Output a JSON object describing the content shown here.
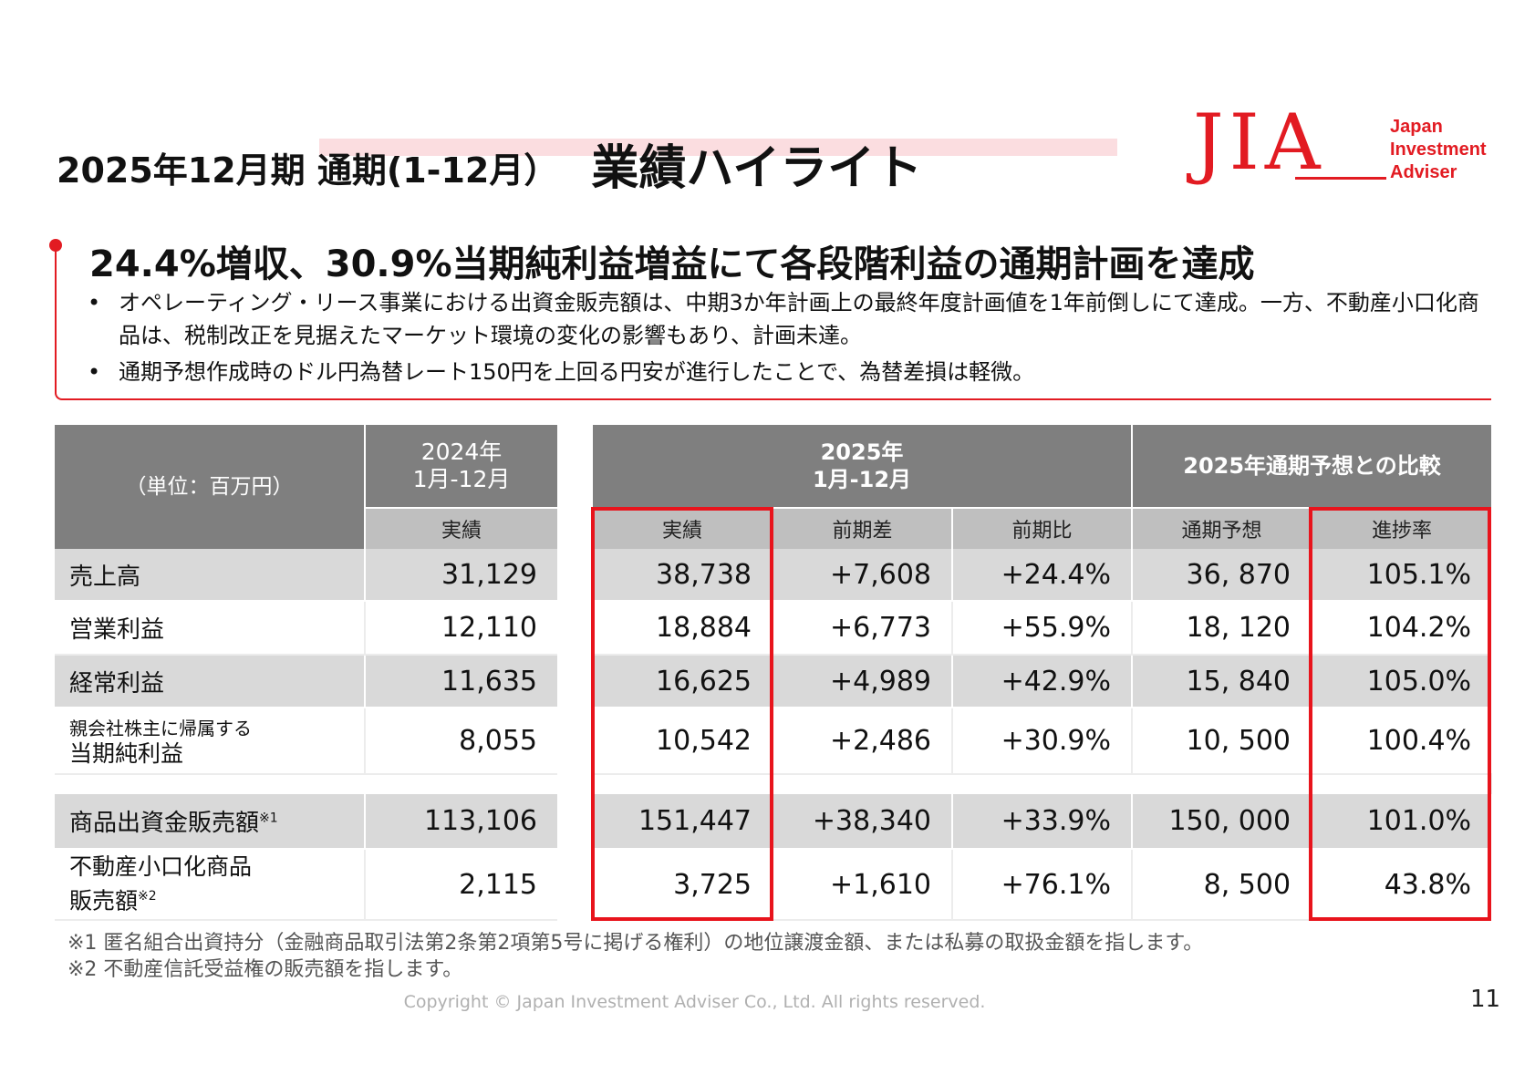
{
  "header": {
    "title_main": "2025年12月期 通期(1-12月）",
    "title_sub": "業績ハイライト"
  },
  "logo": {
    "mark": "JIA",
    "name_lines": [
      "Japan",
      "Investment",
      "Adviser"
    ]
  },
  "highlight": {
    "title": "24.4%増収、30.9%当期純利益増益にて各段階利益の通期計画を達成",
    "bullets": [
      "オペレーティング・リース事業における出資金販売額は、中期3か年計画上の最終年度計画値を1年前倒しにて達成。一方、不動産小口化商品は、税制改正を見据えたマーケット環境の変化の影響もあり、計画未達。",
      "通期予想作成時のドル円為替レート150円を上回る円安が進行したことで、為替差損は軽微。"
    ]
  },
  "left_table": {
    "unit_label": "（単位：百万円）",
    "period_header": [
      "2024年",
      "1月-12月"
    ],
    "sub_header": "実績",
    "rows": [
      {
        "label": "売上高",
        "value": "31,129"
      },
      {
        "label": "営業利益",
        "value": "12,110"
      },
      {
        "label": "経常利益",
        "value": "11,635"
      },
      {
        "label_lines": [
          "親会社株主に帰属する",
          "当期純利益"
        ],
        "value": "8,055"
      },
      {
        "label": "商品出資金販売額",
        "label_sup": "※1",
        "value": "113,106"
      },
      {
        "label_lines": [
          "不動産小口化商品",
          "販売額"
        ],
        "label_sup": "※2",
        "value": "2,115"
      }
    ]
  },
  "right_table": {
    "period_header": [
      "2025年",
      "1月-12月"
    ],
    "compare_header": "2025年通期予想との比較",
    "sub_headers": [
      "実績",
      "前期差",
      "前期比",
      "通期予想",
      "進捗率"
    ],
    "rows": [
      [
        "38,738",
        "+7,608",
        "+24.4%",
        "36, 870",
        "105.1%"
      ],
      [
        "18,884",
        "+6,773",
        "+55.9%",
        "18, 120",
        "104.2%"
      ],
      [
        "16,625",
        "+4,989",
        "+42.9%",
        "15, 840",
        "105.0%"
      ],
      [
        "10,542",
        "+2,486",
        "+30.9%",
        "10, 500",
        "100.4%"
      ],
      [
        "151,447",
        "+38,340",
        "+33.9%",
        "150, 000",
        "101.0%"
      ],
      [
        "3,725",
        "+1,610",
        "+76.1%",
        "8, 500",
        "43.8%"
      ]
    ]
  },
  "notes": [
    {
      "mark": "※1",
      "text": " 匿名組合出資持分（金融商品取引法第2条第2項第5号に掲げる権利）の地位譲渡金額、または私募の取扱金額を指します。"
    },
    {
      "mark": "※2",
      "text": " 不動産信託受益権の販売額を指します。"
    }
  ],
  "footer": {
    "copyright": "Copyright © Japan Investment Adviser Co., Ltd. All rights reserved.",
    "page_number": "11"
  },
  "colors": {
    "accent_red": "#e21b22",
    "header_dark": "#7f7f7f",
    "header_light": "#bfbfbf",
    "row_shade": "#d9d9d9"
  }
}
